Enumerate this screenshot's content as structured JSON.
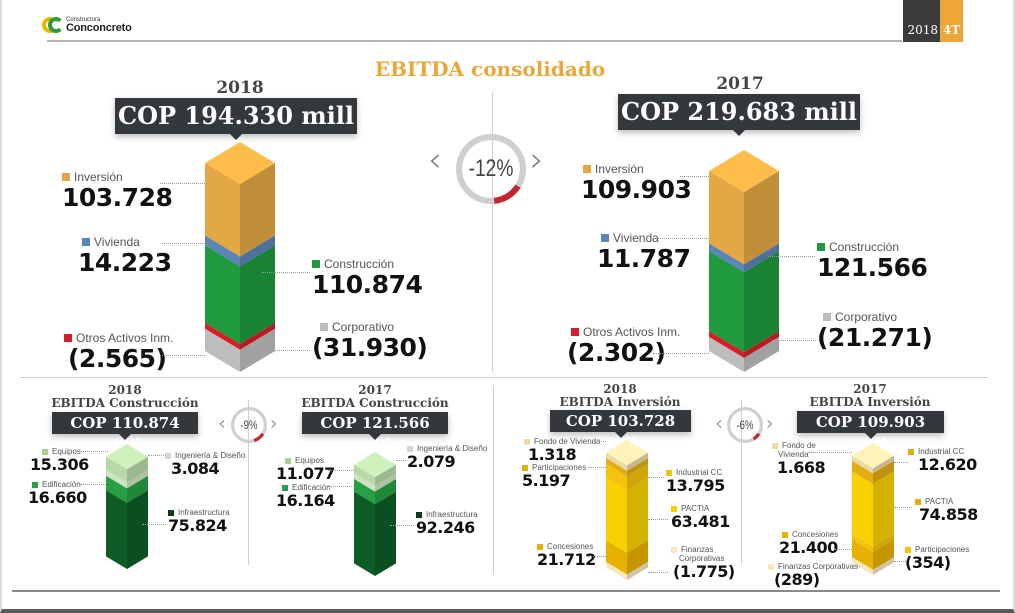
{
  "header": {
    "brand_small": "Constructora",
    "brand_name": "Conconcreto",
    "period_year": "2018",
    "period_quarter": "4T"
  },
  "title": "EBITDA consolidado",
  "colors": {
    "inversion": "#e3a843",
    "vivienda": "#5b85b7",
    "construccion": "#1f9a3c",
    "otros": "#d81e28",
    "corporativo": "#bdbdbd",
    "accent": "#eba83a",
    "negative_dial": "#c62530"
  },
  "chart_data": [
    {
      "id": "consolidado-2018",
      "type": "bar",
      "subtype": "stacked-3d",
      "year": "2018",
      "total_label": "COP 194.330 mill",
      "total": 194330,
      "unit": "COP mill",
      "series": [
        {
          "name": "Inversión",
          "value": 103728,
          "display": "103.728",
          "color": "#e3a843"
        },
        {
          "name": "Vivienda",
          "value": 14223,
          "display": "14.223",
          "color": "#5b85b7"
        },
        {
          "name": "Construcción",
          "value": 110874,
          "display": "110.874",
          "color": "#1f9a3c"
        },
        {
          "name": "Otros Activos Inm.",
          "value": -2565,
          "display": "(2.565)",
          "color": "#d81e28"
        },
        {
          "name": "Corporativo",
          "value": -31930,
          "display": "(31.930)",
          "color": "#bdbdbd"
        }
      ]
    },
    {
      "id": "consolidado-2017",
      "type": "bar",
      "subtype": "stacked-3d",
      "year": "2017",
      "total_label": "COP 219.683 mill",
      "total": 219683,
      "unit": "COP mill",
      "series": [
        {
          "name": "Inversión",
          "value": 109903,
          "display": "109.903",
          "color": "#e3a843"
        },
        {
          "name": "Vivienda",
          "value": 11787,
          "display": "11.787",
          "color": "#5b85b7"
        },
        {
          "name": "Construcción",
          "value": 121566,
          "display": "121.566",
          "color": "#1f9a3c"
        },
        {
          "name": "Otros Activos Inm.",
          "value": -2302,
          "display": "(2.302)",
          "color": "#d81e28"
        },
        {
          "name": "Corporativo",
          "value": -21271,
          "display": "(21.271)",
          "color": "#bdbdbd"
        }
      ]
    },
    {
      "id": "construccion-2018",
      "type": "bar",
      "subtype": "stacked-3d",
      "year": "2018",
      "subtitle": "EBITDA Construcción",
      "total_label": "COP 110.874 mill",
      "total": 110874,
      "series": [
        {
          "name": "Equipos",
          "value": 15306,
          "display": "15.306",
          "color": "#b8d8a8"
        },
        {
          "name": "Ingeniería & Diseño",
          "value": 3084,
          "display": "3.084",
          "color": "#cfe3c2"
        },
        {
          "name": "Edificación",
          "value": 16660,
          "display": "16.660",
          "color": "#27a045"
        },
        {
          "name": "Infraestructura",
          "value": 75824,
          "display": "75.824",
          "color": "#0d5c26"
        }
      ]
    },
    {
      "id": "construccion-2017",
      "type": "bar",
      "subtype": "stacked-3d",
      "year": "2017",
      "subtitle": "EBITDA Construcción",
      "total_label": "COP 121.566 mill",
      "total": 121566,
      "series": [
        {
          "name": "Equipos",
          "value": 11077,
          "display": "11.077",
          "color": "#b8d8a8"
        },
        {
          "name": "Ingeniería & Diseño",
          "value": 2079,
          "display": "2.079",
          "color": "#cfe3c2"
        },
        {
          "name": "Edificación",
          "value": 16164,
          "display": "16.164",
          "color": "#27a045"
        },
        {
          "name": "Infraestructura",
          "value": 92246,
          "display": "92.246",
          "color": "#0d5c26"
        }
      ]
    },
    {
      "id": "inversion-2018",
      "type": "bar",
      "subtype": "stacked-3d",
      "year": "2018",
      "subtitle": "EBITDA Inversión",
      "total_label": "COP 103.728 mill",
      "total": 103728,
      "series": [
        {
          "name": "Fondo de Vivienda",
          "value": 1318,
          "display": "1.318",
          "color": "#ecd9a6"
        },
        {
          "name": "Participaciones",
          "value": 5197,
          "display": "5.197",
          "color": "#e2ad12"
        },
        {
          "name": "Industrial CC",
          "value": 13795,
          "display": "13.795",
          "color": "#f4c20d"
        },
        {
          "name": "PACTIA",
          "value": 63481,
          "display": "63.481",
          "color": "#fbd000"
        },
        {
          "name": "Concesiones",
          "value": 21712,
          "display": "21.712",
          "color": "#e8b000"
        },
        {
          "name": "Finanzas Corporativas",
          "value": -1775,
          "display": "(1.775)",
          "color": "#f6e7bf"
        }
      ]
    },
    {
      "id": "inversion-2017",
      "type": "bar",
      "subtype": "stacked-3d",
      "year": "2017",
      "subtitle": "EBITDA Inversión",
      "total_label": "COP 109.903 mill",
      "total": 109903,
      "series": [
        {
          "name": "Fondo de Vivienda",
          "value": 1668,
          "display": "1.668",
          "color": "#ecd9a6"
        },
        {
          "name": "Industrial CC",
          "value": 12620,
          "display": "12.620",
          "color": "#e2ad12"
        },
        {
          "name": "PACTIA",
          "value": 74858,
          "display": "74.858",
          "color": "#fbd000"
        },
        {
          "name": "Concesiones",
          "value": 21400,
          "display": "21.400",
          "color": "#e8b000"
        },
        {
          "name": "Participaciones",
          "value": -354,
          "display": "(354)",
          "color": "#f4c20d"
        },
        {
          "name": "Finanzas Corporativas",
          "value": -289,
          "display": "(289)",
          "color": "#f6e7bf"
        }
      ]
    }
  ],
  "variations": {
    "consolidado": {
      "label": "-12%",
      "value": -12
    },
    "construccion": {
      "label": "-9%",
      "value": -9
    },
    "inversion": {
      "label": "-6%",
      "value": -6
    }
  },
  "labels": {
    "fondo_2017_line1": "Fondo de",
    "fondo_2017_line2": "Vivienda",
    "finanzas_2018_line1": "Finanzas",
    "finanzas_2018_line2": "Corporativas"
  }
}
